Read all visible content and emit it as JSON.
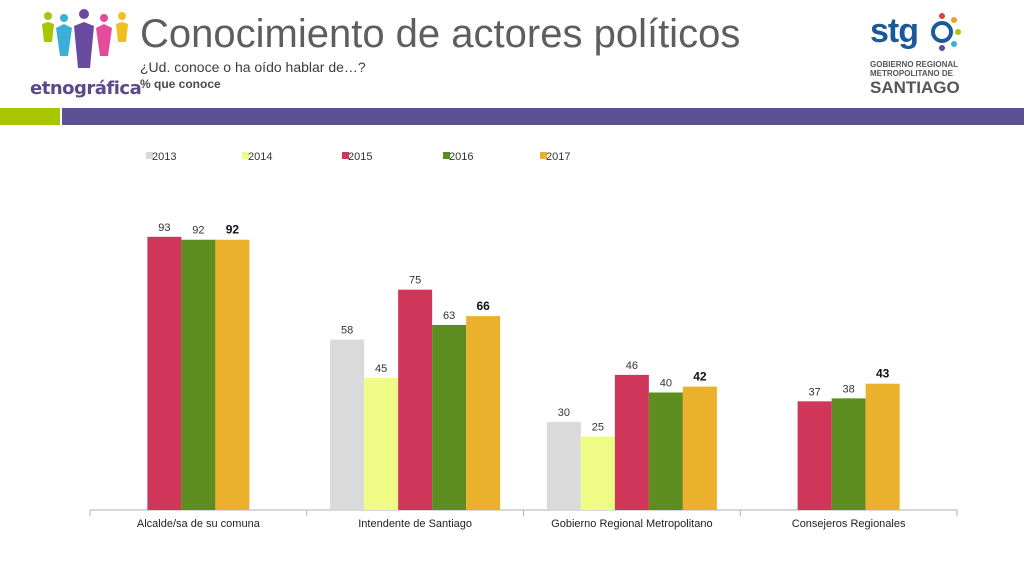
{
  "header": {
    "title": "Conocimiento de actores políticos",
    "subtitle": "¿Ud. conoce o ha oído hablar de…?",
    "note": "% que conoce"
  },
  "logos": {
    "left_name": "etnográfica",
    "right_brand": "stg",
    "right_line1": "GOBIERNO REGIONAL",
    "right_line2": "METROPOLITANO DE",
    "right_line3": "SANTIAGO"
  },
  "colors": {
    "accent_green": "#a7c500",
    "accent_purple": "#5b5294"
  },
  "chart_data": {
    "type": "bar",
    "title": "",
    "xlabel": "",
    "ylabel": "",
    "ylim": [
      0,
      100
    ],
    "grid": false,
    "legend": "top-left",
    "categories": [
      "Alcalde/sa de su comuna",
      "Intendente de Santiago",
      "Gobierno Regional Metropolitano",
      "Consejeros Regionales"
    ],
    "series": [
      {
        "name": "2013",
        "color": "#dadada",
        "values": [
          null,
          58,
          30,
          null
        ]
      },
      {
        "name": "2014",
        "color": "#eefc86",
        "values": [
          null,
          45,
          25,
          null
        ]
      },
      {
        "name": "2015",
        "color": "#d0355a",
        "values": [
          93,
          75,
          46,
          37
        ]
      },
      {
        "name": "2016",
        "color": "#5c8d1e",
        "values": [
          92,
          63,
          40,
          38
        ]
      },
      {
        "name": "2017",
        "color": "#ebb12c",
        "values": [
          92,
          66,
          42,
          43
        ]
      }
    ],
    "bold_series": "2017"
  }
}
